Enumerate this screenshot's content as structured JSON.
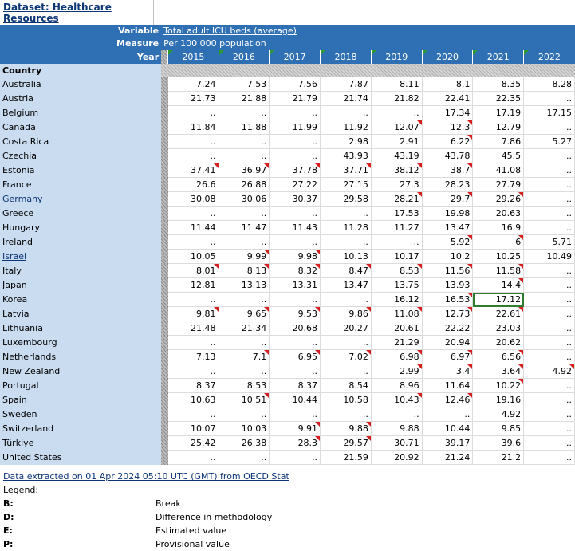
{
  "dataset": {
    "title": "Dataset: Healthcare Resources"
  },
  "header": {
    "variable_label": "Variable",
    "variable_value": "Total adult ICU beds (average)",
    "measure_label": "Measure",
    "measure_value": "Per 100 000 population",
    "year_label": "Year",
    "country_label": "Country",
    "years": [
      "2015",
      "2016",
      "2017",
      "2018",
      "2019",
      "2020",
      "2021",
      "2022"
    ]
  },
  "rows": [
    {
      "country": "Australia",
      "link": false,
      "values": [
        "7.24",
        "7.53",
        "7.56",
        "7.87",
        "8.11",
        "8.1",
        "8.35",
        "8.28"
      ],
      "flags": [
        0,
        0,
        0,
        0,
        0,
        0,
        0,
        0
      ]
    },
    {
      "country": "Austria",
      "link": false,
      "values": [
        "21.73",
        "21.88",
        "21.79",
        "21.74",
        "21.82",
        "22.41",
        "22.35",
        ".."
      ],
      "flags": [
        0,
        0,
        0,
        0,
        0,
        0,
        0,
        0
      ]
    },
    {
      "country": "Belgium",
      "link": false,
      "values": [
        "..",
        "..",
        "..",
        "..",
        "..",
        "17.34",
        "17.19",
        "17.15"
      ],
      "flags": [
        0,
        0,
        0,
        0,
        0,
        0,
        0,
        0
      ]
    },
    {
      "country": "Canada",
      "link": false,
      "values": [
        "11.84",
        "11.88",
        "11.99",
        "11.92",
        "12.07",
        "12.3",
        "12.79",
        ".."
      ],
      "flags": [
        0,
        0,
        0,
        0,
        1,
        1,
        0,
        0
      ]
    },
    {
      "country": "Costa Rica",
      "link": false,
      "values": [
        "..",
        "..",
        "..",
        "2.98",
        "2.91",
        "6.22",
        "7.86",
        "5.27"
      ],
      "flags": [
        0,
        0,
        0,
        0,
        0,
        1,
        0,
        0
      ]
    },
    {
      "country": "Czechia",
      "link": false,
      "values": [
        "..",
        "..",
        "..",
        "43.93",
        "43.19",
        "43.78",
        "45.5",
        ".."
      ],
      "flags": [
        0,
        0,
        0,
        0,
        0,
        0,
        0,
        0
      ]
    },
    {
      "country": "Estonia",
      "link": false,
      "values": [
        "37.41",
        "36.97",
        "37.78",
        "37.71",
        "38.12",
        "38.7",
        "41.08",
        ".."
      ],
      "flags": [
        1,
        1,
        1,
        1,
        1,
        1,
        0,
        0
      ]
    },
    {
      "country": "France",
      "link": false,
      "values": [
        "26.6",
        "26.88",
        "27.22",
        "27.15",
        "27.3",
        "28.23",
        "27.79",
        ".."
      ],
      "flags": [
        0,
        0,
        0,
        0,
        0,
        0,
        0,
        0
      ]
    },
    {
      "country": "Germany",
      "link": true,
      "values": [
        "30.08",
        "30.06",
        "30.37",
        "29.58",
        "28.21",
        "29.7",
        "29.26",
        ".."
      ],
      "flags": [
        0,
        0,
        0,
        0,
        1,
        1,
        1,
        0
      ]
    },
    {
      "country": "Greece",
      "link": false,
      "values": [
        "..",
        "..",
        "..",
        "..",
        "17.53",
        "19.98",
        "20.63",
        ".."
      ],
      "flags": [
        0,
        0,
        0,
        0,
        0,
        0,
        0,
        0
      ]
    },
    {
      "country": "Hungary",
      "link": false,
      "values": [
        "11.44",
        "11.47",
        "11.43",
        "11.28",
        "11.27",
        "13.47",
        "16.9",
        ".."
      ],
      "flags": [
        0,
        0,
        0,
        0,
        0,
        0,
        0,
        0
      ]
    },
    {
      "country": "Ireland",
      "link": false,
      "values": [
        "..",
        "..",
        "..",
        "..",
        "..",
        "5.92",
        "6",
        "5.71"
      ],
      "flags": [
        0,
        0,
        0,
        0,
        0,
        1,
        1,
        0
      ]
    },
    {
      "country": "Israel",
      "link": true,
      "values": [
        "10.05",
        "9.99",
        "9.98",
        "10.13",
        "10.17",
        "10.2",
        "10.25",
        "10.49"
      ],
      "flags": [
        0,
        1,
        1,
        0,
        0,
        0,
        0,
        0
      ]
    },
    {
      "country": "Italy",
      "link": false,
      "values": [
        "8.01",
        "8.13",
        "8.32",
        "8.47",
        "8.53",
        "11.56",
        "11.58",
        ".."
      ],
      "flags": [
        1,
        1,
        1,
        1,
        1,
        1,
        1,
        0
      ]
    },
    {
      "country": "Japan",
      "link": false,
      "values": [
        "12.81",
        "13.13",
        "13.31",
        "13.47",
        "13.75",
        "13.93",
        "14.4",
        ".."
      ],
      "flags": [
        0,
        0,
        0,
        0,
        0,
        0,
        1,
        0
      ]
    },
    {
      "country": "Korea",
      "link": false,
      "values": [
        "..",
        "..",
        "..",
        "..",
        "16.12",
        "16.53",
        "17.12",
        ".."
      ],
      "flags": [
        0,
        0,
        0,
        0,
        0,
        1,
        0,
        0
      ],
      "selected": 6
    },
    {
      "country": "Latvia",
      "link": false,
      "values": [
        "9.81",
        "9.65",
        "9.53",
        "9.86",
        "11.08",
        "12.73",
        "22.61",
        ".."
      ],
      "flags": [
        1,
        1,
        1,
        1,
        1,
        1,
        1,
        0
      ]
    },
    {
      "country": "Lithuania",
      "link": false,
      "values": [
        "21.48",
        "21.34",
        "20.68",
        "20.27",
        "20.61",
        "22.22",
        "23.03",
        ".."
      ],
      "flags": [
        0,
        0,
        0,
        0,
        0,
        0,
        0,
        0
      ]
    },
    {
      "country": "Luxembourg",
      "link": false,
      "values": [
        "..",
        "..",
        "..",
        "..",
        "21.29",
        "20.94",
        "20.62",
        ".."
      ],
      "flags": [
        0,
        0,
        0,
        0,
        0,
        0,
        0,
        0
      ]
    },
    {
      "country": "Netherlands",
      "link": false,
      "values": [
        "7.13",
        "7.1",
        "6.95",
        "7.02",
        "6.98",
        "6.97",
        "6.56",
        ".."
      ],
      "flags": [
        0,
        1,
        1,
        1,
        1,
        1,
        1,
        0
      ]
    },
    {
      "country": "New Zealand",
      "link": false,
      "values": [
        "..",
        "..",
        "..",
        "..",
        "2.99",
        "3.4",
        "3.64",
        "4.92"
      ],
      "flags": [
        0,
        0,
        0,
        0,
        1,
        1,
        1,
        1
      ]
    },
    {
      "country": "Portugal",
      "link": false,
      "values": [
        "8.37",
        "8.53",
        "8.37",
        "8.54",
        "8.96",
        "11.64",
        "10.22",
        ".."
      ],
      "flags": [
        0,
        0,
        0,
        0,
        0,
        0,
        1,
        0
      ]
    },
    {
      "country": "Spain",
      "link": false,
      "values": [
        "10.63",
        "10.51",
        "10.44",
        "10.58",
        "10.43",
        "12.46",
        "19.16",
        ".."
      ],
      "flags": [
        0,
        1,
        0,
        0,
        1,
        1,
        0,
        0
      ]
    },
    {
      "country": "Sweden",
      "link": false,
      "values": [
        "..",
        "..",
        "..",
        "..",
        "..",
        "..",
        "4.92",
        ".."
      ],
      "flags": [
        0,
        0,
        0,
        0,
        0,
        0,
        0,
        0
      ]
    },
    {
      "country": "Switzerland",
      "link": false,
      "values": [
        "10.07",
        "10.03",
        "9.91",
        "9.88",
        "9.88",
        "10.44",
        "9.85",
        ".."
      ],
      "flags": [
        0,
        0,
        1,
        1,
        0,
        0,
        0,
        0
      ]
    },
    {
      "country": "Türkiye",
      "link": false,
      "values": [
        "25.42",
        "26.38",
        "28.3",
        "29.57",
        "30.71",
        "39.17",
        "39.6",
        ".."
      ],
      "flags": [
        0,
        0,
        1,
        1,
        0,
        0,
        0,
        0
      ]
    },
    {
      "country": "United States",
      "link": false,
      "values": [
        "..",
        "..",
        "..",
        "21.59",
        "20.92",
        "21.24",
        "21.2",
        ".."
      ],
      "flags": [
        0,
        0,
        0,
        0,
        0,
        0,
        0,
        0
      ]
    }
  ],
  "footer": {
    "source": "Data extracted on 01 Apr 2024 05:10 UTC (GMT) from OECD.Stat",
    "legend_label": "Legend:",
    "legend": [
      {
        "code": "B:",
        "desc": "Break"
      },
      {
        "code": "D:",
        "desc": "Difference in methodology"
      },
      {
        "code": "E:",
        "desc": "Estimated value"
      },
      {
        "code": "P:",
        "desc": "Provisional value"
      }
    ]
  },
  "colors": {
    "header": "#2f6fb3",
    "country_bg": "#c9dcf0",
    "flag": "#d62020",
    "year_marker": "#2e9b2e"
  }
}
